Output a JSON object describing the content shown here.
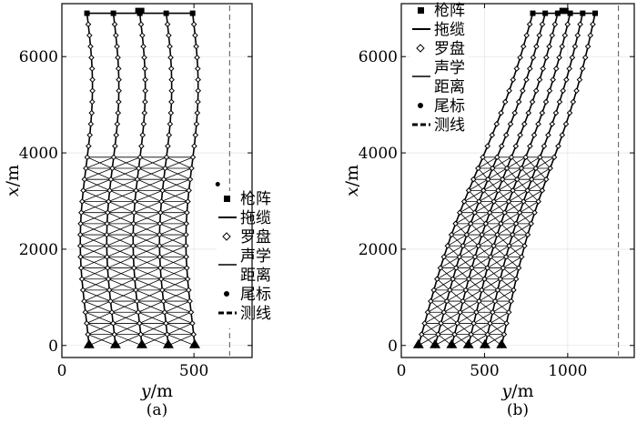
{
  "chart_data": [
    {
      "type": "scatter",
      "panel_label": "(a)",
      "xlabel_var": "y",
      "xlabel_unit": "/m",
      "ylabel_var": "x",
      "ylabel_unit": "/m",
      "xlim": [
        0,
        720
      ],
      "ylim": [
        -250,
        7100
      ],
      "xticks": [
        0,
        500
      ],
      "yticks": [
        0,
        2000,
        4000,
        6000
      ],
      "grid": true,
      "legend_placement": "lower-right",
      "legend": [
        "枪阵",
        "拖缆",
        "罗盘",
        "声学距离",
        "尾标",
        "测线"
      ],
      "cables": {
        "count": 5,
        "head_y": [
          95,
          195,
          295,
          395,
          495
        ],
        "tail_y": [
          90,
          190,
          290,
          390,
          490
        ],
        "head_x": 6900,
        "tail_x": 0,
        "acoustic_top_x": 3950,
        "acoustic_bottom_x": 0,
        "compass_count": 30
      },
      "tail_buoy": {
        "y": 590,
        "x": 3350
      },
      "survey_line_y": 635
    },
    {
      "type": "scatter",
      "panel_label": "(b)",
      "xlabel_var": "y",
      "xlabel_unit": "/m",
      "ylabel_var": "x",
      "ylabel_unit": "/m",
      "xlim": [
        0,
        1400
      ],
      "ylim": [
        -250,
        7100
      ],
      "xticks": [
        0,
        500,
        1000
      ],
      "yticks": [
        0,
        2000,
        4000,
        6000
      ],
      "grid": true,
      "legend_placement": "top-left",
      "legend": [
        "枪阵",
        "拖缆",
        "罗盘",
        "声学距离",
        "尾标",
        "测线"
      ],
      "cables": {
        "count": 6,
        "head_y": [
          790,
          865,
          940,
          1015,
          1090,
          1165
        ],
        "tail_y": [
          90,
          190,
          290,
          390,
          490,
          590
        ],
        "head_x": 6900,
        "tail_x": 0,
        "acoustic_top_x": 3950,
        "acoustic_bottom_x": 0,
        "compass_count": 30
      },
      "survey_line_y": 1305
    }
  ]
}
